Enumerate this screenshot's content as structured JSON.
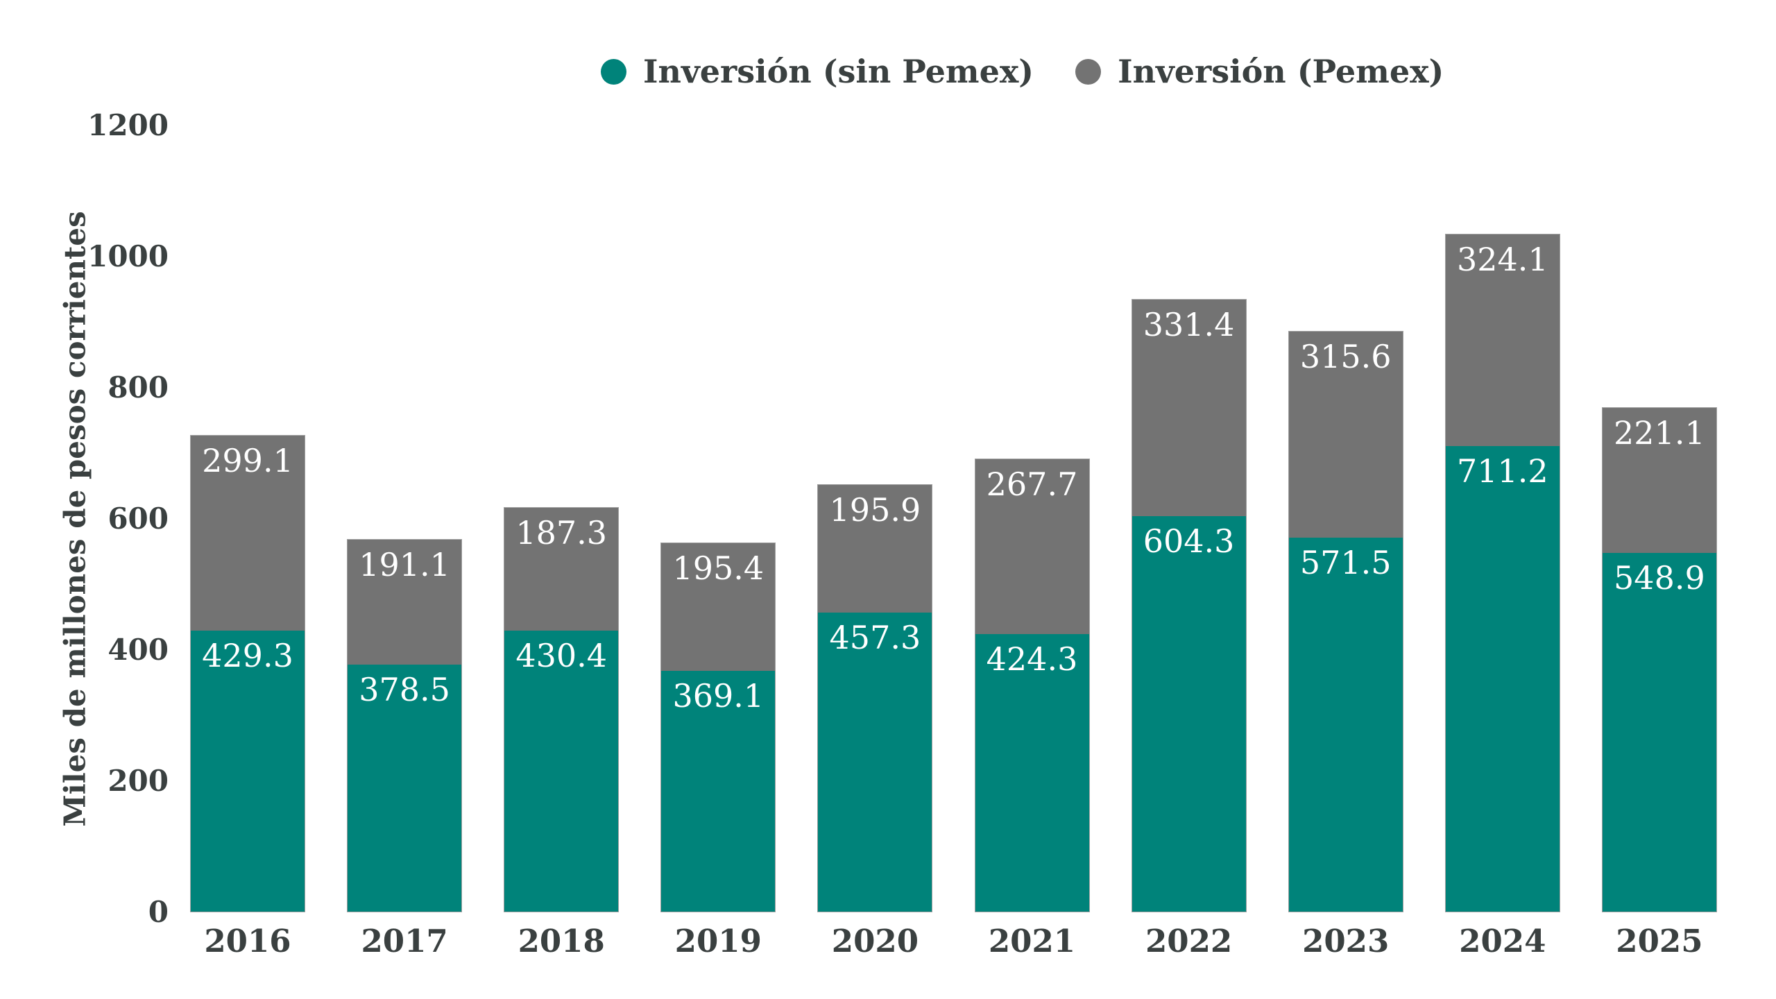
{
  "chart": {
    "background": "#ffffff",
    "text_color": "#3A4040",
    "value_label_color": "#ffffff"
  },
  "legend": {
    "items": [
      {
        "label": "Inversión (sin Pemex)",
        "color": "#00837A"
      },
      {
        "label": "Inversión (Pemex)",
        "color": "#737373"
      }
    ]
  },
  "chart_data": {
    "type": "bar",
    "stacked": true,
    "title": "",
    "xlabel": "",
    "ylabel": "Miles de millones de pesos corrientes",
    "categories": [
      "2016",
      "2017",
      "2018",
      "2019",
      "2020",
      "2021",
      "2022",
      "2023",
      "2024",
      "2025"
    ],
    "series": [
      {
        "name": "Inversión (sin Pemex)",
        "color": "#00837A",
        "values": [
          429.3,
          378.5,
          430.4,
          369.1,
          457.3,
          424.3,
          604.3,
          571.5,
          711.2,
          548.9
        ]
      },
      {
        "name": "Inversión (Pemex)",
        "color": "#737373",
        "values": [
          299.1,
          191.1,
          187.3,
          195.4,
          195.9,
          267.7,
          331.4,
          315.6,
          324.1,
          221.1
        ]
      }
    ],
    "totals": [
      728.4,
      569.6,
      617.7,
      564.5,
      653.2,
      692.0,
      935.7,
      887.1,
      1035.3,
      770.0
    ],
    "ylim": [
      0,
      1200
    ],
    "yticks": [
      0,
      200,
      400,
      600,
      800,
      1000,
      1200
    ],
    "grid": false,
    "legend_position": "top",
    "value_labels": "inside-top",
    "value_format": "one-decimal"
  }
}
